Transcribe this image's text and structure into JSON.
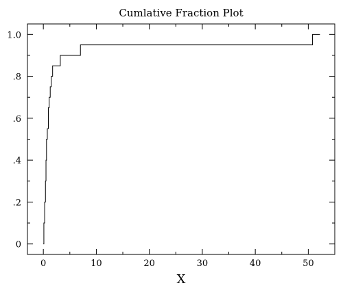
{
  "chart_data": {
    "type": "line",
    "step": true,
    "title": "Cumlative Fraction Plot",
    "xlabel": "X",
    "ylabel": "",
    "xlim": [
      -3,
      55
    ],
    "ylim": [
      -0.05,
      1.05
    ],
    "xticks": [
      0,
      10,
      20,
      30,
      40,
      50
    ],
    "xtick_labels": [
      "0",
      "10",
      "20",
      "30",
      "40",
      "50"
    ],
    "yticks": [
      0,
      0.2,
      0.4,
      0.6,
      0.8,
      1.0
    ],
    "ytick_labels": [
      "0",
      ".2",
      ".4",
      ".6",
      ".8",
      "1.0"
    ],
    "grid": false,
    "series": [
      {
        "x": [
          0.0,
          0.1,
          0.25,
          0.4,
          0.5,
          0.6,
          0.75,
          0.95,
          1.1,
          1.3,
          1.5,
          1.75,
          3.2,
          7.0,
          50.8,
          52.2
        ],
        "y": [
          0.0,
          0.1,
          0.2,
          0.3,
          0.4,
          0.5,
          0.55,
          0.65,
          0.7,
          0.75,
          0.8,
          0.85,
          0.9,
          0.95,
          1.0,
          1.0
        ]
      }
    ]
  }
}
